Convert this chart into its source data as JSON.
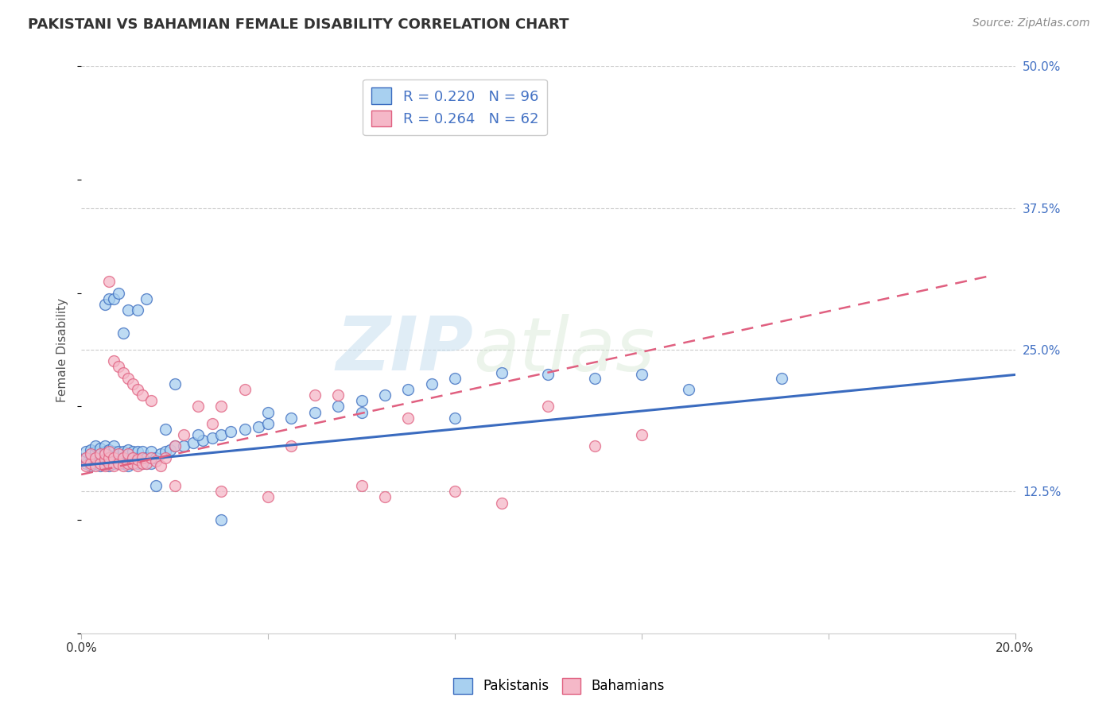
{
  "title": "PAKISTANI VS BAHAMIAN FEMALE DISABILITY CORRELATION CHART",
  "source": "Source: ZipAtlas.com",
  "ylabel": "Female Disability",
  "pakistani_R": 0.22,
  "pakistani_N": 96,
  "bahamian_R": 0.264,
  "bahamian_N": 62,
  "pakistani_color": "#a8d0f0",
  "bahamian_color": "#f5b8c8",
  "trend_pakistani_color": "#3a6bbf",
  "trend_bahamian_color": "#e06080",
  "watermark_zip": "ZIP",
  "watermark_atlas": "atlas",
  "xlim": [
    0.0,
    0.2
  ],
  "ylim": [
    0.0,
    0.5
  ],
  "trend_pak_x0": 0.0,
  "trend_pak_y0": 0.148,
  "trend_pak_x1": 0.2,
  "trend_pak_y1": 0.228,
  "trend_bah_x0": 0.0,
  "trend_bah_y0": 0.14,
  "trend_bah_x1": 0.12,
  "trend_bah_y1": 0.248,
  "pakistani_x": [
    0.001,
    0.001,
    0.001,
    0.002,
    0.002,
    0.002,
    0.002,
    0.003,
    0.003,
    0.003,
    0.003,
    0.004,
    0.004,
    0.004,
    0.004,
    0.005,
    0.005,
    0.005,
    0.005,
    0.006,
    0.006,
    0.006,
    0.006,
    0.006,
    0.007,
    0.007,
    0.007,
    0.007,
    0.008,
    0.008,
    0.008,
    0.009,
    0.009,
    0.009,
    0.01,
    0.01,
    0.01,
    0.01,
    0.011,
    0.011,
    0.011,
    0.012,
    0.012,
    0.012,
    0.013,
    0.013,
    0.013,
    0.014,
    0.014,
    0.015,
    0.015,
    0.015,
    0.016,
    0.017,
    0.018,
    0.019,
    0.02,
    0.022,
    0.024,
    0.026,
    0.028,
    0.03,
    0.032,
    0.035,
    0.038,
    0.04,
    0.045,
    0.05,
    0.055,
    0.06,
    0.065,
    0.07,
    0.075,
    0.08,
    0.09,
    0.1,
    0.11,
    0.12,
    0.13,
    0.15,
    0.005,
    0.006,
    0.007,
    0.008,
    0.009,
    0.01,
    0.012,
    0.014,
    0.016,
    0.018,
    0.02,
    0.025,
    0.03,
    0.04,
    0.06,
    0.08
  ],
  "pakistani_y": [
    0.15,
    0.155,
    0.16,
    0.148,
    0.152,
    0.158,
    0.162,
    0.15,
    0.155,
    0.16,
    0.165,
    0.148,
    0.153,
    0.158,
    0.163,
    0.15,
    0.155,
    0.16,
    0.165,
    0.148,
    0.152,
    0.157,
    0.162,
    0.155,
    0.15,
    0.155,
    0.16,
    0.165,
    0.15,
    0.155,
    0.16,
    0.15,
    0.155,
    0.16,
    0.148,
    0.152,
    0.157,
    0.162,
    0.15,
    0.155,
    0.16,
    0.15,
    0.155,
    0.16,
    0.15,
    0.155,
    0.16,
    0.15,
    0.155,
    0.15,
    0.155,
    0.16,
    0.155,
    0.158,
    0.16,
    0.162,
    0.165,
    0.165,
    0.168,
    0.17,
    0.172,
    0.175,
    0.178,
    0.18,
    0.182,
    0.185,
    0.19,
    0.195,
    0.2,
    0.205,
    0.21,
    0.215,
    0.22,
    0.225,
    0.23,
    0.228,
    0.225,
    0.228,
    0.215,
    0.225,
    0.29,
    0.295,
    0.295,
    0.3,
    0.265,
    0.285,
    0.285,
    0.295,
    0.13,
    0.18,
    0.22,
    0.175,
    0.1,
    0.195,
    0.195,
    0.19
  ],
  "bahamian_x": [
    0.001,
    0.001,
    0.002,
    0.002,
    0.003,
    0.003,
    0.004,
    0.004,
    0.005,
    0.005,
    0.005,
    0.006,
    0.006,
    0.006,
    0.007,
    0.007,
    0.008,
    0.008,
    0.009,
    0.009,
    0.01,
    0.01,
    0.011,
    0.011,
    0.012,
    0.012,
    0.013,
    0.013,
    0.014,
    0.015,
    0.016,
    0.017,
    0.018,
    0.02,
    0.022,
    0.025,
    0.028,
    0.03,
    0.035,
    0.04,
    0.045,
    0.05,
    0.055,
    0.06,
    0.065,
    0.07,
    0.08,
    0.09,
    0.1,
    0.11,
    0.12,
    0.006,
    0.007,
    0.008,
    0.009,
    0.01,
    0.011,
    0.012,
    0.013,
    0.015,
    0.02,
    0.03
  ],
  "bahamian_y": [
    0.148,
    0.155,
    0.15,
    0.158,
    0.148,
    0.155,
    0.15,
    0.158,
    0.148,
    0.153,
    0.158,
    0.15,
    0.155,
    0.16,
    0.148,
    0.155,
    0.15,
    0.158,
    0.148,
    0.155,
    0.15,
    0.158,
    0.15,
    0.155,
    0.148,
    0.153,
    0.15,
    0.155,
    0.15,
    0.155,
    0.152,
    0.148,
    0.155,
    0.165,
    0.175,
    0.2,
    0.185,
    0.2,
    0.215,
    0.12,
    0.165,
    0.21,
    0.21,
    0.13,
    0.12,
    0.19,
    0.125,
    0.115,
    0.2,
    0.165,
    0.175,
    0.31,
    0.24,
    0.235,
    0.23,
    0.225,
    0.22,
    0.215,
    0.21,
    0.205,
    0.13,
    0.125
  ]
}
